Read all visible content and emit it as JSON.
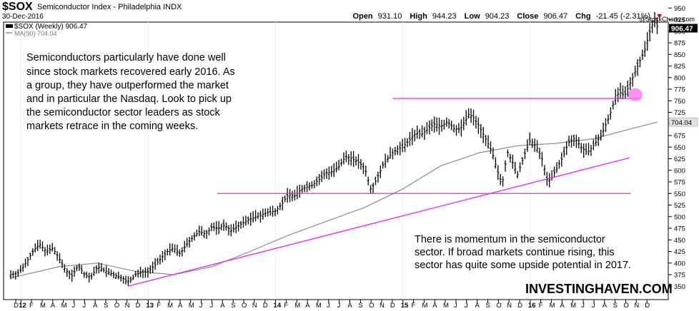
{
  "header": {
    "symbol": "$SOX",
    "description": "Semiconductor Index - Philadelphia  INDX",
    "date": "30-Dec-2016",
    "open_label": "Open",
    "open_value": "931.10",
    "high_label": "High",
    "high_value": "944.23",
    "low_label": "Low",
    "low_value": "904.23",
    "close_label": "Close",
    "close_value": "906.47",
    "chg_label": "Chg",
    "chg_value": "-21.45 (-2.31%)",
    "chg_arrow": "▼"
  },
  "watermark": "@StockCharts.com",
  "legend": {
    "price": "$SOX (Weekly) 906.47",
    "ma": "MA(90) 704.04"
  },
  "annotation_1": [
    "Semiconductors particularly have done well",
    "since stock markets recovered early 2016. As",
    "a group, they have outperformed the market",
    "and in particular the Nasdaq. Look to pick up",
    "the semiconductor sector leaders as stock",
    "markets retrace in the coming weeks."
  ],
  "annotation_2": [
    "There is momentum in the semiconductor",
    "sector. If broad markets continue rising, this",
    "sector has quite some upside potential in 2017."
  ],
  "brand": "INVESTINGHAVEN.COM",
  "colors": {
    "price": "#000000",
    "ma": "#8c8c8c",
    "trendline": "#ee22ee",
    "highlight": "#ff77ee"
  },
  "chart_data": {
    "type": "line",
    "title": "Semiconductor Index - Philadelphia",
    "ylim": [
      335,
      955
    ],
    "y_ticks": [
      350,
      375,
      400,
      425,
      450,
      475,
      500,
      525,
      550,
      575,
      600,
      625,
      650,
      675,
      700,
      725,
      750,
      775,
      800,
      825,
      850,
      875,
      900,
      925,
      950
    ],
    "x_ticks": [
      {
        "label": "D",
        "t": -0.04
      },
      {
        "label": "12",
        "t": 0,
        "bold": true
      },
      {
        "label": "F",
        "t": 0.083
      },
      {
        "label": "M",
        "t": 0.167
      },
      {
        "label": "A",
        "t": 0.25
      },
      {
        "label": "M",
        "t": 0.333
      },
      {
        "label": "J",
        "t": 0.417
      },
      {
        "label": "J",
        "t": 0.5
      },
      {
        "label": "A",
        "t": 0.583
      },
      {
        "label": "S",
        "t": 0.667
      },
      {
        "label": "O",
        "t": 0.75
      },
      {
        "label": "N",
        "t": 0.833
      },
      {
        "label": "D",
        "t": 0.917
      },
      {
        "label": "13",
        "t": 1,
        "bold": true
      },
      {
        "label": "F",
        "t": 1.083
      },
      {
        "label": "M",
        "t": 1.167
      },
      {
        "label": "A",
        "t": 1.25
      },
      {
        "label": "M",
        "t": 1.333
      },
      {
        "label": "J",
        "t": 1.417
      },
      {
        "label": "J",
        "t": 1.5
      },
      {
        "label": "A",
        "t": 1.583
      },
      {
        "label": "S",
        "t": 1.667
      },
      {
        "label": "O",
        "t": 1.75
      },
      {
        "label": "N",
        "t": 1.833
      },
      {
        "label": "D",
        "t": 1.917
      },
      {
        "label": "14",
        "t": 2,
        "bold": true
      },
      {
        "label": "F",
        "t": 2.083
      },
      {
        "label": "M",
        "t": 2.167
      },
      {
        "label": "A",
        "t": 2.25
      },
      {
        "label": "M",
        "t": 2.333
      },
      {
        "label": "J",
        "t": 2.417
      },
      {
        "label": "J",
        "t": 2.5
      },
      {
        "label": "A",
        "t": 2.583
      },
      {
        "label": "S",
        "t": 2.667
      },
      {
        "label": "O",
        "t": 2.75
      },
      {
        "label": "N",
        "t": 2.833
      },
      {
        "label": "D",
        "t": 2.917
      },
      {
        "label": "15",
        "t": 3,
        "bold": true
      },
      {
        "label": "F",
        "t": 3.083
      },
      {
        "label": "M",
        "t": 3.167
      },
      {
        "label": "A",
        "t": 3.25
      },
      {
        "label": "M",
        "t": 3.333
      },
      {
        "label": "J",
        "t": 3.417
      },
      {
        "label": "J",
        "t": 3.5
      },
      {
        "label": "A",
        "t": 3.583
      },
      {
        "label": "S",
        "t": 3.667
      },
      {
        "label": "O",
        "t": 3.75
      },
      {
        "label": "N",
        "t": 3.833
      },
      {
        "label": "D",
        "t": 3.917
      },
      {
        "label": "16",
        "t": 4,
        "bold": true
      },
      {
        "label": "F",
        "t": 4.083
      },
      {
        "label": "M",
        "t": 4.167
      },
      {
        "label": "A",
        "t": 4.25
      },
      {
        "label": "M",
        "t": 4.333
      },
      {
        "label": "J",
        "t": 4.417
      },
      {
        "label": "J",
        "t": 4.5
      },
      {
        "label": "A",
        "t": 4.583
      },
      {
        "label": "S",
        "t": 4.667
      },
      {
        "label": "O",
        "t": 4.75
      },
      {
        "label": "N",
        "t": 4.833
      },
      {
        "label": "D",
        "t": 4.917
      }
    ],
    "series": [
      {
        "name": "$SOX (Weekly)",
        "points": [
          [
            -0.08,
            375
          ],
          [
            -0.02,
            378
          ],
          [
            0.05,
            405
          ],
          [
            0.1,
            428
          ],
          [
            0.15,
            440
          ],
          [
            0.2,
            425
          ],
          [
            0.25,
            432
          ],
          [
            0.3,
            410
          ],
          [
            0.35,
            385
          ],
          [
            0.4,
            372
          ],
          [
            0.45,
            395
          ],
          [
            0.5,
            375
          ],
          [
            0.55,
            368
          ],
          [
            0.6,
            392
          ],
          [
            0.65,
            385
          ],
          [
            0.7,
            378
          ],
          [
            0.75,
            372
          ],
          [
            0.8,
            368
          ],
          [
            0.83,
            360
          ],
          [
            0.86,
            362
          ],
          [
            0.9,
            375
          ],
          [
            0.95,
            380
          ],
          [
            1.0,
            382
          ],
          [
            1.05,
            395
          ],
          [
            1.1,
            410
          ],
          [
            1.15,
            425
          ],
          [
            1.2,
            432
          ],
          [
            1.25,
            420
          ],
          [
            1.3,
            440
          ],
          [
            1.35,
            455
          ],
          [
            1.4,
            468
          ],
          [
            1.45,
            462
          ],
          [
            1.5,
            478
          ],
          [
            1.55,
            475
          ],
          [
            1.6,
            482
          ],
          [
            1.65,
            470
          ],
          [
            1.7,
            478
          ],
          [
            1.75,
            488
          ],
          [
            1.8,
            495
          ],
          [
            1.85,
            500
          ],
          [
            1.9,
            505
          ],
          [
            1.95,
            510
          ],
          [
            2.0,
            512
          ],
          [
            2.05,
            528
          ],
          [
            2.1,
            548
          ],
          [
            2.15,
            545
          ],
          [
            2.2,
            558
          ],
          [
            2.25,
            565
          ],
          [
            2.3,
            570
          ],
          [
            2.35,
            582
          ],
          [
            2.4,
            595
          ],
          [
            2.45,
            598
          ],
          [
            2.5,
            608
          ],
          [
            2.55,
            630
          ],
          [
            2.6,
            625
          ],
          [
            2.65,
            618
          ],
          [
            2.7,
            605
          ],
          [
            2.75,
            558
          ],
          [
            2.8,
            585
          ],
          [
            2.85,
            615
          ],
          [
            2.9,
            632
          ],
          [
            2.95,
            645
          ],
          [
            3.0,
            650
          ],
          [
            3.05,
            665
          ],
          [
            3.1,
            680
          ],
          [
            3.15,
            678
          ],
          [
            3.2,
            690
          ],
          [
            3.25,
            700
          ],
          [
            3.3,
            695
          ],
          [
            3.35,
            705
          ],
          [
            3.4,
            690
          ],
          [
            3.45,
            688
          ],
          [
            3.48,
            703
          ],
          [
            3.52,
            722
          ],
          [
            3.56,
            712
          ],
          [
            3.6,
            694
          ],
          [
            3.65,
            668
          ],
          [
            3.7,
            640
          ],
          [
            3.74,
            600
          ],
          [
            3.78,
            570
          ],
          [
            3.82,
            640
          ],
          [
            3.86,
            618
          ],
          [
            3.9,
            590
          ],
          [
            3.95,
            630
          ],
          [
            4.0,
            665
          ],
          [
            4.05,
            650
          ],
          [
            4.1,
            620
          ],
          [
            4.13,
            580
          ],
          [
            4.16,
            580
          ],
          [
            4.2,
            600
          ],
          [
            4.25,
            625
          ],
          [
            4.3,
            660
          ],
          [
            4.35,
            670
          ],
          [
            4.4,
            650
          ],
          [
            4.45,
            638
          ],
          [
            4.5,
            655
          ],
          [
            4.55,
            672
          ],
          [
            4.58,
            690
          ],
          [
            4.62,
            715
          ],
          [
            4.66,
            750
          ],
          [
            4.7,
            770
          ],
          [
            4.74,
            760
          ],
          [
            4.78,
            785
          ],
          [
            4.82,
            810
          ],
          [
            4.86,
            835
          ],
          [
            4.9,
            860
          ],
          [
            4.94,
            900
          ],
          [
            4.98,
            930
          ],
          [
            5.0,
            906.47
          ]
        ]
      },
      {
        "name": "MA(90)",
        "points": [
          [
            -0.08,
            368
          ],
          [
            0.3,
            392
          ],
          [
            0.6,
            400
          ],
          [
            0.9,
            382
          ],
          [
            1.2,
            375
          ],
          [
            1.5,
            392
          ],
          [
            1.8,
            425
          ],
          [
            2.1,
            460
          ],
          [
            2.4,
            490
          ],
          [
            2.7,
            520
          ],
          [
            3.0,
            560
          ],
          [
            3.3,
            610
          ],
          [
            3.6,
            638
          ],
          [
            3.9,
            653
          ],
          [
            4.2,
            658
          ],
          [
            4.5,
            668
          ],
          [
            4.8,
            690
          ],
          [
            5.0,
            704.04
          ]
        ]
      }
    ],
    "lines": [
      {
        "kind": "horizontal",
        "y": 755,
        "t_start": 2.92,
        "t_end": 4.87
      },
      {
        "kind": "horizontal",
        "y": 550,
        "t_start": 1.54,
        "t_end": 4.79
      },
      {
        "kind": "trend",
        "from": [
          0.84,
          350
        ],
        "to": [
          4.78,
          627
        ]
      }
    ],
    "highlight": {
      "t": 4.78,
      "y": 760
    },
    "last_value_label": "906.47",
    "ma_value_label": "704.04"
  }
}
